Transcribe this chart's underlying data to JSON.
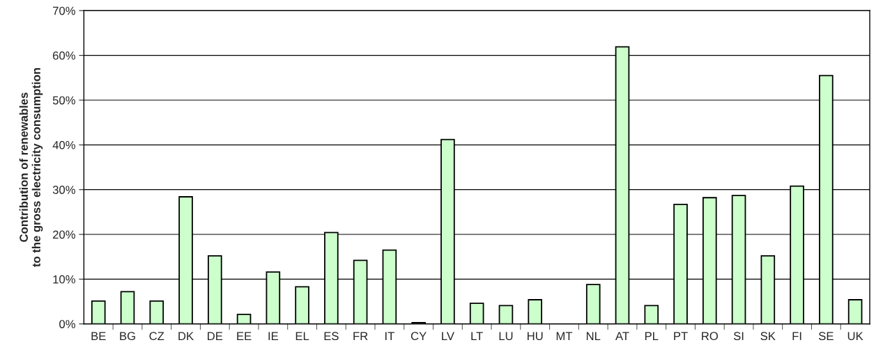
{
  "chart_data": {
    "type": "bar",
    "ylabel": "Contribution of renewables\nto the gross electricity consumption",
    "categories": [
      "BE",
      "BG",
      "CZ",
      "DK",
      "DE",
      "EE",
      "IE",
      "EL",
      "ES",
      "FR",
      "IT",
      "CY",
      "LV",
      "LT",
      "LU",
      "HU",
      "MT",
      "NL",
      "AT",
      "PL",
      "PT",
      "RO",
      "SI",
      "SK",
      "FI",
      "SE",
      "UK"
    ],
    "values": [
      5.1,
      7.2,
      5.1,
      28.4,
      15.2,
      2.1,
      11.6,
      8.3,
      20.4,
      14.2,
      16.5,
      0.3,
      41.2,
      4.6,
      4.1,
      5.4,
      null,
      8.8,
      61.9,
      4.1,
      26.7,
      28.2,
      28.7,
      15.2,
      30.8,
      55.5,
      5.4
    ],
    "color": "#ccffcc",
    "ylim": [
      0,
      70
    ],
    "yticks": [
      {
        "value": 0,
        "label": "0%"
      },
      {
        "value": 10,
        "label": "10%"
      },
      {
        "value": 20,
        "label": "20%"
      },
      {
        "value": 30,
        "label": "30%"
      },
      {
        "value": 40,
        "label": "40%"
      },
      {
        "value": 50,
        "label": "50%"
      },
      {
        "value": 60,
        "label": "60%"
      },
      {
        "value": 70,
        "label": "70%"
      }
    ],
    "grid": "y"
  }
}
